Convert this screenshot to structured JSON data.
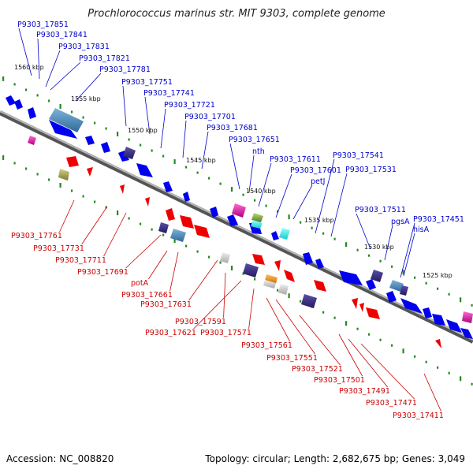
{
  "title": "Prochlorococcus marinus str. MIT 9303, complete genome",
  "footer": {
    "accession": "Accession: NC_008820",
    "summary": "Topology: circular; Length: 2,682,675 bp; Genes: 3,049"
  },
  "scale_labels": [
    "1560 kbp",
    "1555 kbp",
    "1550 kbp",
    "1545 kbp",
    "1540 kbp",
    "1535 kbp",
    "1530 kbp",
    "1525 kbp"
  ],
  "labels_top": [
    "P9303_17851",
    "P9303_17841",
    "P9303_17831",
    "P9303_17821",
    "P9303_17781",
    "P9303_17751",
    "P9303_17741",
    "P9303_17721",
    "P9303_17701",
    "P9303_17681",
    "P9303_17651",
    "nth",
    "P9303_17611",
    "P9303_17601",
    "petJ",
    "P9303_17541",
    "P9303_17531",
    "P9303_17511",
    "pgsA",
    "P9303_17451",
    "hisA"
  ],
  "labels_bottom": [
    "P9303_17761",
    "P9303_17731",
    "P9303_17711",
    "P9303_17691",
    "potA",
    "P9303_17661",
    "P9303_17631",
    "P9303_17591",
    "P9303_17621",
    "P9303_17571",
    "P9303_17561",
    "P9303_17551",
    "P9303_17521",
    "P9303_17501",
    "P9303_17491",
    "P9303_17471",
    "P9303_17411"
  ],
  "colors": {
    "backbone": "#8c8c8c",
    "top_label": "#0000cc",
    "bottom_label": "#cc0000",
    "forward_gene": "#0000ee",
    "reverse_gene": "#ee0000",
    "tick": "#228b22"
  }
}
